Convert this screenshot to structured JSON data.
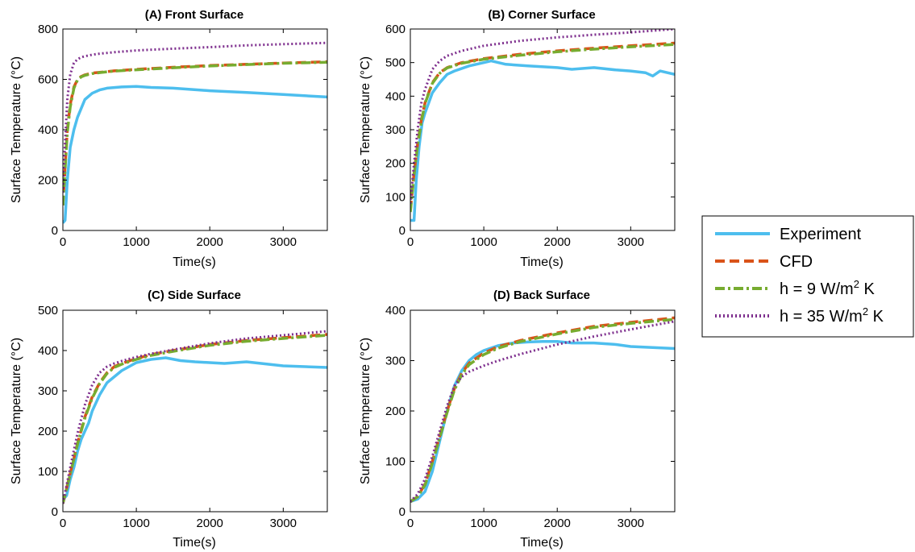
{
  "legend": {
    "position": "right",
    "entries": [
      {
        "label": "Experiment",
        "sup": "",
        "tail": "",
        "color": "#4dbeee",
        "style": "solid"
      },
      {
        "label": "CFD",
        "sup": "",
        "tail": "",
        "color": "#d95319",
        "style": "dashed"
      },
      {
        "label": "h = 9 W/m",
        "sup": "2",
        "tail": " K",
        "color": "#77ac30",
        "style": "dashdot"
      },
      {
        "label": "h = 35 W/m",
        "sup": "2",
        "tail": " K",
        "color": "#7e2f8e",
        "style": "dotted"
      }
    ]
  },
  "chart_data": [
    {
      "type": "line",
      "title": "(A) Front Surface",
      "xlabel": "Time(s)",
      "ylabel": "Surface Temperature (°C)",
      "xlim": [
        0,
        3600
      ],
      "ylim": [
        0,
        800
      ],
      "xticks": [
        0,
        1000,
        2000,
        3000
      ],
      "yticks": [
        0,
        200,
        400,
        600,
        800
      ],
      "grid": false,
      "series": [
        {
          "name": "Experiment",
          "x": [
            0,
            30,
            60,
            100,
            150,
            200,
            300,
            400,
            500,
            600,
            800,
            1000,
            1200,
            1500,
            2000,
            2500,
            3000,
            3600
          ],
          "y": [
            30,
            40,
            200,
            330,
            400,
            450,
            520,
            545,
            558,
            565,
            570,
            572,
            568,
            565,
            555,
            548,
            540,
            530
          ]
        },
        {
          "name": "CFD",
          "x": [
            0,
            30,
            60,
            100,
            150,
            200,
            250,
            300,
            400,
            500,
            700,
            1000,
            1500,
            2000,
            2500,
            3000,
            3600
          ],
          "y": [
            100,
            250,
            400,
            500,
            570,
            600,
            612,
            618,
            625,
            628,
            634,
            640,
            648,
            655,
            660,
            665,
            670
          ]
        },
        {
          "name": "h = 9 W/m2 K",
          "x": [
            0,
            30,
            60,
            100,
            150,
            200,
            250,
            300,
            400,
            500,
            700,
            1000,
            1500,
            2000,
            2500,
            3000,
            3600
          ],
          "y": [
            100,
            240,
            390,
            490,
            565,
            598,
            610,
            616,
            623,
            627,
            633,
            638,
            646,
            653,
            659,
            664,
            668
          ]
        },
        {
          "name": "h = 35 W/m2 K",
          "x": [
            0,
            30,
            60,
            100,
            150,
            200,
            250,
            300,
            400,
            500,
            700,
            1000,
            1500,
            2000,
            2500,
            3000,
            3600
          ],
          "y": [
            150,
            350,
            520,
            620,
            665,
            680,
            688,
            692,
            698,
            702,
            708,
            715,
            722,
            728,
            735,
            740,
            745
          ]
        }
      ]
    },
    {
      "type": "line",
      "title": "(B) Corner Surface",
      "xlabel": "Time(s)",
      "ylabel": "Surface Temperature (°C)",
      "xlim": [
        0,
        3600
      ],
      "ylim": [
        0,
        600
      ],
      "xticks": [
        0,
        1000,
        2000,
        3000
      ],
      "yticks": [
        0,
        100,
        200,
        300,
        400,
        500,
        600
      ],
      "grid": false,
      "series": [
        {
          "name": "Experiment",
          "x": [
            0,
            50,
            80,
            120,
            160,
            200,
            250,
            300,
            400,
            500,
            600,
            800,
            1000,
            1100,
            1300,
            1600,
            2000,
            2200,
            2500,
            2800,
            3000,
            3200,
            3300,
            3400,
            3500,
            3600
          ],
          "y": [
            30,
            30,
            150,
            250,
            320,
            350,
            380,
            410,
            440,
            465,
            475,
            490,
            500,
            505,
            495,
            490,
            485,
            480,
            485,
            478,
            475,
            470,
            460,
            475,
            470,
            465
          ]
        },
        {
          "name": "CFD",
          "x": [
            0,
            50,
            100,
            150,
            200,
            300,
            400,
            500,
            700,
            1000,
            1500,
            2000,
            2500,
            3000,
            3600
          ],
          "y": [
            60,
            170,
            260,
            330,
            380,
            440,
            470,
            485,
            500,
            512,
            525,
            535,
            543,
            550,
            558
          ]
        },
        {
          "name": "h = 9 W/m2 K",
          "x": [
            0,
            50,
            100,
            150,
            200,
            300,
            400,
            500,
            700,
            1000,
            1500,
            2000,
            2500,
            3000,
            3600
          ],
          "y": [
            55,
            165,
            255,
            325,
            378,
            438,
            468,
            484,
            498,
            510,
            522,
            532,
            540,
            547,
            554
          ]
        },
        {
          "name": "h = 35 W/m2 K",
          "x": [
            0,
            50,
            100,
            150,
            200,
            300,
            400,
            500,
            700,
            1000,
            1500,
            2000,
            2500,
            3000,
            3600
          ],
          "y": [
            80,
            200,
            300,
            380,
            420,
            480,
            505,
            520,
            535,
            550,
            565,
            575,
            583,
            590,
            600
          ]
        }
      ]
    },
    {
      "type": "line",
      "title": "(C) Side Surface",
      "xlabel": "Time(s)",
      "ylabel": "Surface Temperature (°C)",
      "xlim": [
        0,
        3600
      ],
      "ylim": [
        0,
        500
      ],
      "xticks": [
        0,
        1000,
        2000,
        3000
      ],
      "yticks": [
        0,
        100,
        200,
        300,
        400,
        500
      ],
      "grid": false,
      "series": [
        {
          "name": "Experiment",
          "x": [
            0,
            50,
            100,
            150,
            200,
            250,
            300,
            350,
            400,
            500,
            600,
            800,
            1000,
            1200,
            1400,
            1600,
            1800,
            2000,
            2200,
            2500,
            2800,
            3000,
            3300,
            3600
          ],
          "y": [
            30,
            40,
            80,
            110,
            150,
            180,
            200,
            220,
            250,
            290,
            320,
            350,
            370,
            378,
            382,
            375,
            372,
            370,
            368,
            372,
            366,
            362,
            360,
            358
          ]
        },
        {
          "name": "CFD",
          "x": [
            0,
            100,
            200,
            300,
            400,
            500,
            600,
            700,
            800,
            1000,
            1200,
            1500,
            2000,
            2500,
            3000,
            3600
          ],
          "y": [
            20,
            95,
            170,
            235,
            285,
            320,
            345,
            360,
            368,
            380,
            390,
            400,
            415,
            425,
            432,
            440
          ]
        },
        {
          "name": "h = 9 W/m2 K",
          "x": [
            0,
            100,
            200,
            300,
            400,
            500,
            600,
            700,
            800,
            1000,
            1200,
            1500,
            2000,
            2500,
            3000,
            3600
          ],
          "y": [
            20,
            93,
            168,
            232,
            282,
            318,
            343,
            358,
            366,
            378,
            388,
            398,
            413,
            423,
            430,
            438
          ]
        },
        {
          "name": "h = 35 W/m2 K",
          "x": [
            0,
            100,
            200,
            300,
            400,
            500,
            600,
            700,
            800,
            1000,
            1200,
            1500,
            2000,
            2500,
            3000,
            3600
          ],
          "y": [
            20,
            110,
            195,
            265,
            315,
            345,
            360,
            368,
            374,
            384,
            392,
            402,
            418,
            430,
            438,
            448
          ]
        }
      ]
    },
    {
      "type": "line",
      "title": "(D) Back Surface",
      "xlabel": "Time(s)",
      "ylabel": "Surface Temperature (°C)",
      "xlim": [
        0,
        3600
      ],
      "ylim": [
        0,
        400
      ],
      "xticks": [
        0,
        1000,
        2000,
        3000
      ],
      "yticks": [
        0,
        100,
        200,
        300,
        400
      ],
      "grid": false,
      "series": [
        {
          "name": "Experiment",
          "x": [
            0,
            100,
            200,
            300,
            400,
            500,
            600,
            700,
            800,
            900,
            1000,
            1200,
            1400,
            1600,
            1800,
            2000,
            2200,
            2500,
            2800,
            3000,
            3300,
            3600
          ],
          "y": [
            20,
            25,
            40,
            80,
            140,
            200,
            250,
            280,
            300,
            312,
            320,
            330,
            335,
            337,
            338,
            338,
            335,
            335,
            332,
            328,
            326,
            324
          ]
        },
        {
          "name": "CFD",
          "x": [
            0,
            100,
            200,
            300,
            400,
            500,
            600,
            700,
            800,
            1000,
            1200,
            1500,
            2000,
            2500,
            3000,
            3600
          ],
          "y": [
            20,
            30,
            55,
            100,
            150,
            200,
            245,
            275,
            295,
            315,
            328,
            340,
            355,
            368,
            376,
            385
          ]
        },
        {
          "name": "h = 9 W/m2 K",
          "x": [
            0,
            100,
            200,
            300,
            400,
            500,
            600,
            700,
            800,
            1000,
            1200,
            1500,
            2000,
            2500,
            3000,
            3600
          ],
          "y": [
            20,
            30,
            53,
            97,
            147,
            197,
            242,
            272,
            292,
            312,
            325,
            338,
            353,
            366,
            374,
            382
          ]
        },
        {
          "name": "h = 35 W/m2 K",
          "x": [
            0,
            100,
            200,
            300,
            400,
            500,
            600,
            700,
            800,
            1000,
            1200,
            1500,
            2000,
            2500,
            3000,
            3600
          ],
          "y": [
            20,
            35,
            65,
            110,
            160,
            210,
            250,
            268,
            278,
            290,
            300,
            313,
            332,
            348,
            362,
            378
          ]
        }
      ]
    }
  ]
}
